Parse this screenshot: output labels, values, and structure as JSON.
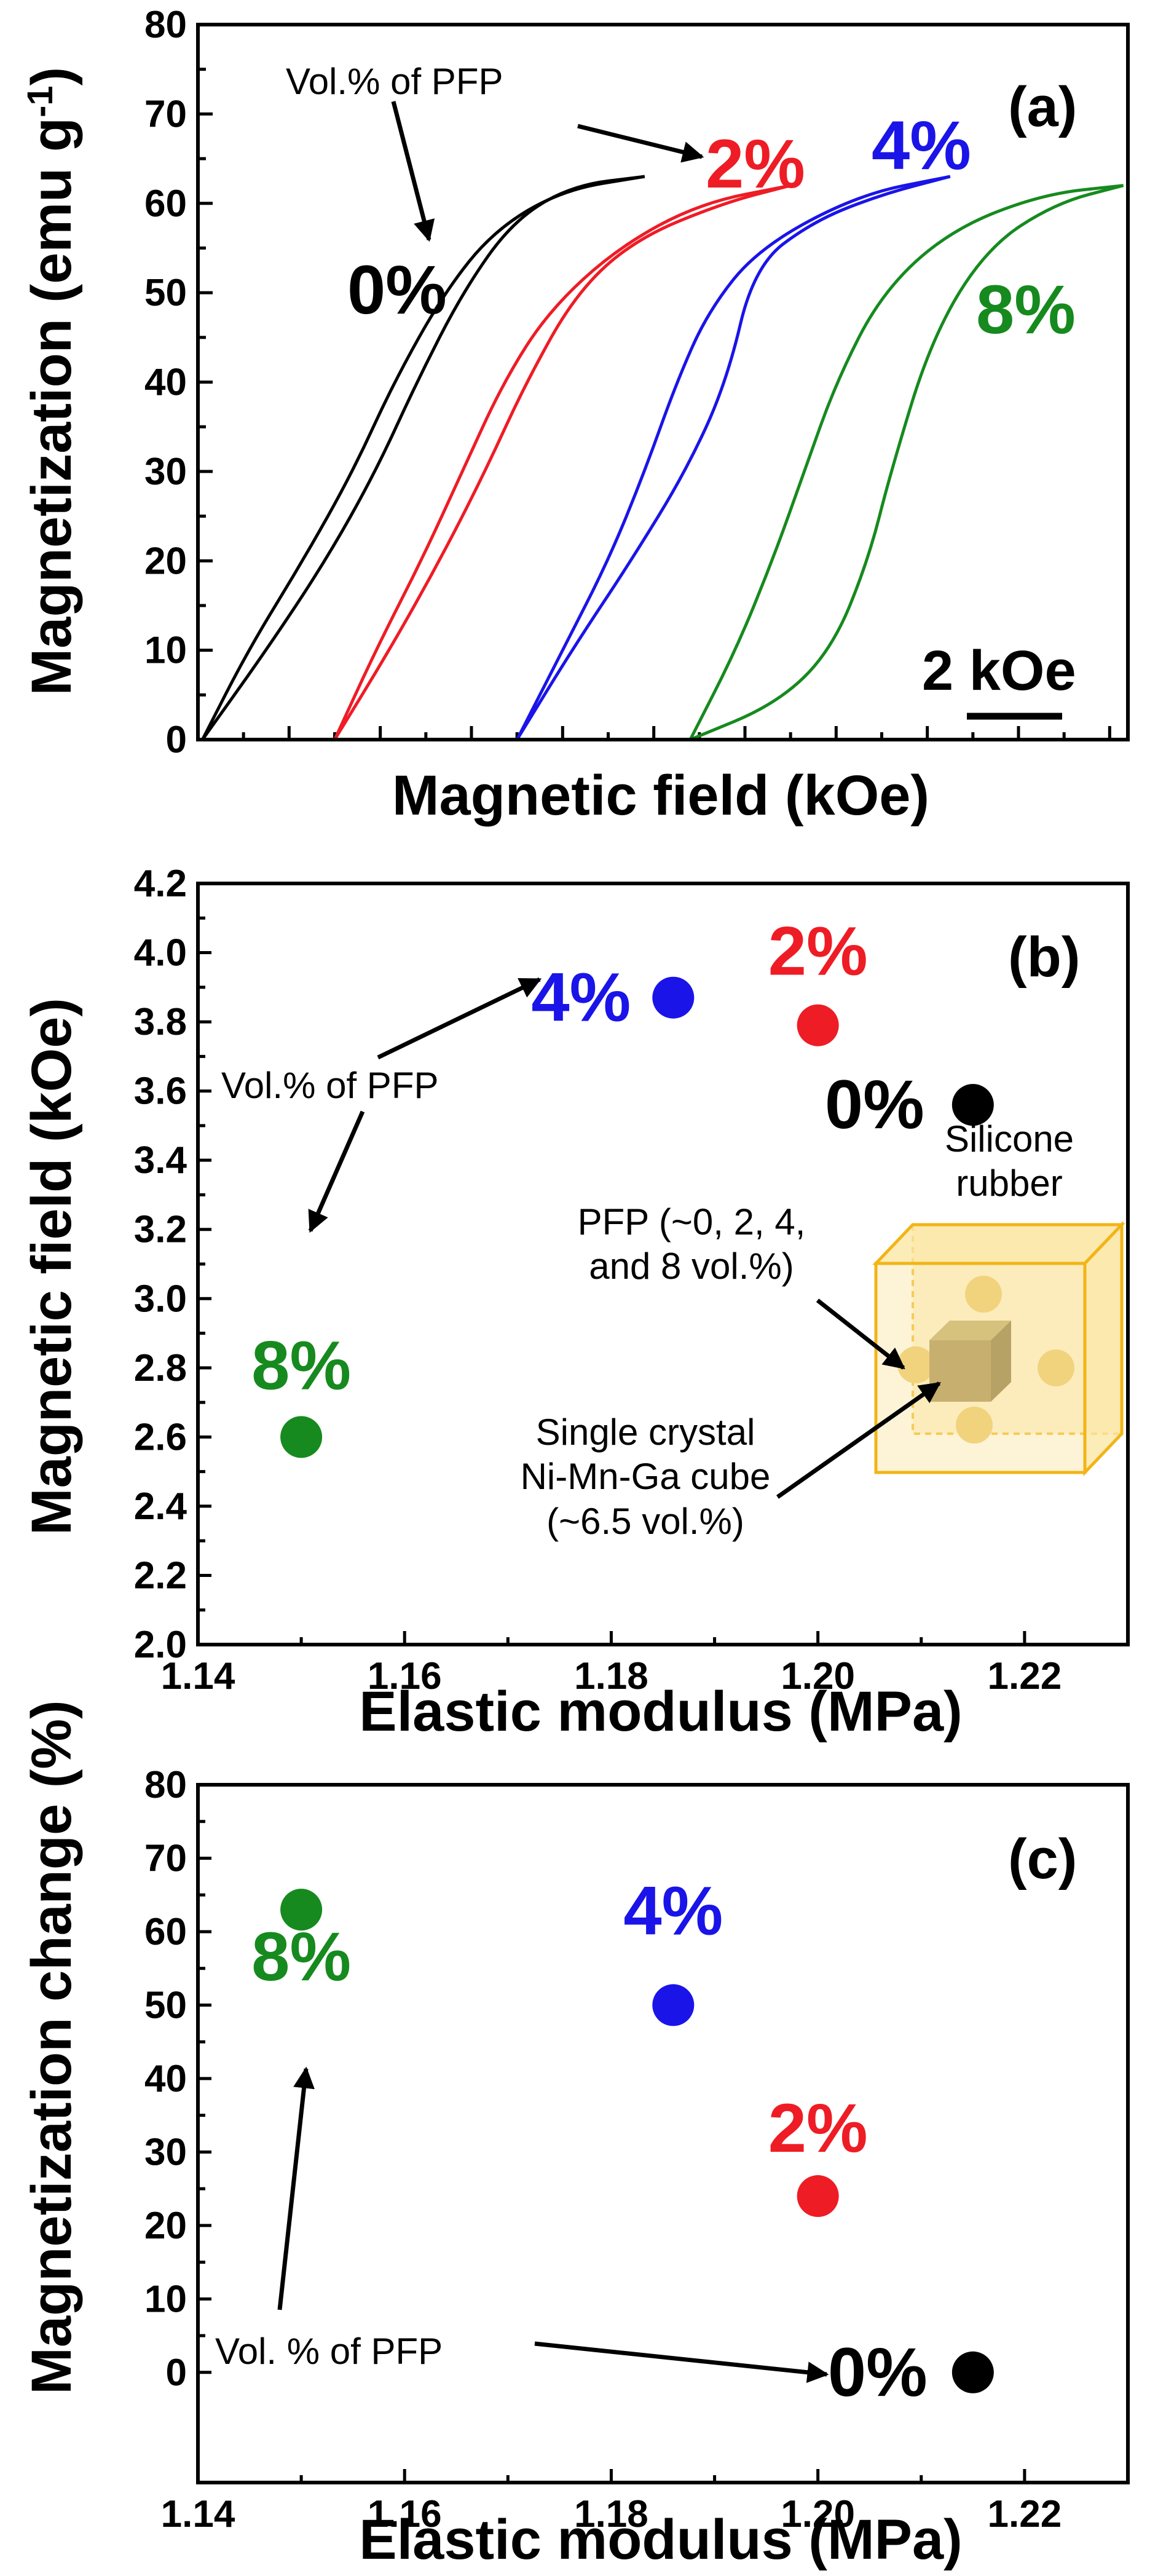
{
  "colors": {
    "0%": "#000000",
    "2%": "#ee1c25",
    "4%": "#1a14e8",
    "8%": "#168a1e",
    "cube_outline": "#f2b416",
    "cube_fill": "#fbe7a6",
    "nimnga": "#9d8442",
    "particle": "#e9c45b"
  },
  "panel_a": {
    "label": "(a)",
    "note": "Vol.% of PFP",
    "scale_bar": "2 kOe",
    "chart_data": {
      "type": "line",
      "title": "",
      "xlabel": "Magnetic field (kOe)",
      "ylabel": "Magnetization (emu g",
      "ylabel_sup": "-1",
      "ylabel_end": ")",
      "ylim": [
        0,
        80
      ],
      "xlim": [
        0,
        20.4
      ],
      "y_ticks": [
        0,
        10,
        20,
        30,
        40,
        50,
        60,
        70,
        80
      ],
      "x_ticks_unlabeled": true,
      "series": [
        {
          "name": "0%",
          "label": "0%",
          "color": "#000000",
          "up": [
            [
              0.1,
              0
            ],
            [
              1.5,
              10
            ],
            [
              2.8,
              20
            ],
            [
              3.9,
              30
            ],
            [
              4.8,
              40
            ],
            [
              5.8,
              50
            ],
            [
              6.9,
              58
            ],
            [
              8.2,
              62
            ],
            [
              9.8,
              63
            ]
          ],
          "down": [
            [
              9.8,
              63
            ],
            [
              8.0,
              61.5
            ],
            [
              6.5,
              57
            ],
            [
              5.4,
              50
            ],
            [
              4.3,
              40
            ],
            [
              3.4,
              30
            ],
            [
              2.3,
              20
            ],
            [
              1.1,
              10
            ],
            [
              0.1,
              0
            ]
          ]
        },
        {
          "name": "2%",
          "label": "2%",
          "color": "#ee1c25",
          "up": [
            [
              3.0,
              0
            ],
            [
              3.9,
              10
            ],
            [
              4.9,
              20
            ],
            [
              5.8,
              30
            ],
            [
              6.7,
              40
            ],
            [
              7.7,
              48
            ],
            [
              9.2,
              55
            ],
            [
              11.0,
              60
            ],
            [
              13.0,
              62
            ]
          ],
          "down": [
            [
              13.0,
              62
            ],
            [
              11.5,
              60
            ],
            [
              9.6,
              56
            ],
            [
              8.3,
              50
            ],
            [
              7.2,
              40
            ],
            [
              6.3,
              30
            ],
            [
              5.3,
              20
            ],
            [
              4.2,
              10
            ],
            [
              3.0,
              0
            ]
          ]
        },
        {
          "name": "4%",
          "label": "4%",
          "color": "#1a14e8",
          "up": [
            [
              7.0,
              0
            ],
            [
              8.0,
              10
            ],
            [
              9.0,
              20
            ],
            [
              9.8,
              30
            ],
            [
              10.5,
              40
            ],
            [
              11.2,
              48
            ],
            [
              12.3,
              55
            ],
            [
              14.5,
              61
            ],
            [
              16.5,
              63
            ]
          ],
          "down": [
            [
              16.5,
              63
            ],
            [
              15.0,
              61
            ],
            [
              13.5,
              58
            ],
            [
              12.2,
              53
            ],
            [
              11.6,
              40
            ],
            [
              10.7,
              30
            ],
            [
              9.5,
              20
            ],
            [
              8.2,
              10
            ],
            [
              7.0,
              0
            ]
          ]
        },
        {
          "name": "8%",
          "label": "8%",
          "color": "#168a1e",
          "up": [
            [
              10.8,
              0
            ],
            [
              11.8,
              10
            ],
            [
              12.6,
              20
            ],
            [
              13.3,
              30
            ],
            [
              14.0,
              40
            ],
            [
              15.0,
              50
            ],
            [
              16.5,
              57
            ],
            [
              18.5,
              61
            ],
            [
              20.3,
              62
            ]
          ],
          "down": [
            [
              20.3,
              62
            ],
            [
              18.8,
              60
            ],
            [
              17.3,
              55
            ],
            [
              16.1,
              45
            ],
            [
              15.2,
              30
            ],
            [
              14.7,
              20
            ],
            [
              13.9,
              10
            ],
            [
              12.7,
              4
            ],
            [
              10.8,
              0
            ]
          ]
        }
      ]
    }
  },
  "panel_b": {
    "label": "(b)",
    "note": "Vol.% of PFP",
    "inset": {
      "silicone_label_1": "Silicone",
      "silicone_label_2": "rubber",
      "pfp_label_1": "PFP (~0, 2, 4,",
      "pfp_label_2": "and 8 vol.%)",
      "cube_label_1": "Single crystal",
      "cube_label_2": "Ni-Mn-Ga cube",
      "cube_label_3": "(~6.5 vol.%)"
    },
    "chart_data": {
      "type": "scatter",
      "title": "",
      "xlabel": "Elastic modulus (MPa)",
      "ylabel": "Magnetic field (kOe)",
      "xlim": [
        1.14,
        1.23
      ],
      "ylim": [
        2.0,
        4.2
      ],
      "x_ticks": [
        "1.14",
        "1.16",
        "1.18",
        "1.20",
        "1.22"
      ],
      "y_ticks": [
        "2.0",
        "2.2",
        "2.4",
        "2.6",
        "2.8",
        "3.0",
        "3.2",
        "3.4",
        "3.6",
        "3.8",
        "4.0",
        "4.2"
      ],
      "points": [
        {
          "label": "0%",
          "x": 1.215,
          "y": 3.56,
          "color": "#000000"
        },
        {
          "label": "2%",
          "x": 1.2,
          "y": 3.79,
          "color": "#ee1c25"
        },
        {
          "label": "4%",
          "x": 1.186,
          "y": 3.87,
          "color": "#1a14e8"
        },
        {
          "label": "8%",
          "x": 1.15,
          "y": 2.6,
          "color": "#168a1e"
        }
      ]
    }
  },
  "panel_c": {
    "label": "(c)",
    "note": "Vol. % of PFP",
    "chart_data": {
      "type": "scatter",
      "title": "",
      "xlabel": "Elastic modulus (MPa)",
      "ylabel": "Magnetization change (%)",
      "xlim": [
        1.14,
        1.23
      ],
      "ylim": [
        -15,
        80
      ],
      "x_ticks": [
        "1.14",
        "1.16",
        "1.18",
        "1.20",
        "1.22"
      ],
      "y_ticks": [
        "0",
        "10",
        "20",
        "30",
        "40",
        "50",
        "60",
        "70",
        "80"
      ],
      "points": [
        {
          "label": "0%",
          "x": 1.215,
          "y": 0,
          "color": "#000000"
        },
        {
          "label": "2%",
          "x": 1.2,
          "y": 24,
          "color": "#ee1c25"
        },
        {
          "label": "4%",
          "x": 1.186,
          "y": 50,
          "color": "#1a14e8"
        },
        {
          "label": "8%",
          "x": 1.15,
          "y": 63,
          "color": "#168a1e"
        }
      ]
    }
  }
}
